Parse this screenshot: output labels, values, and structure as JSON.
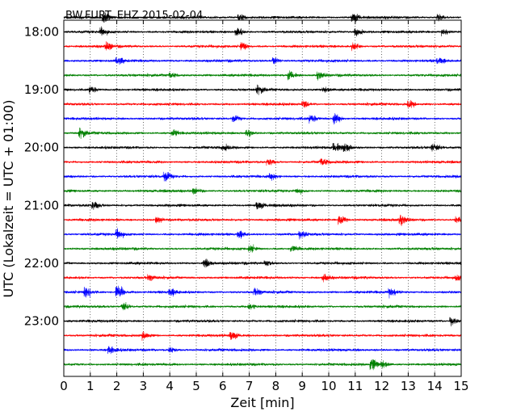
{
  "chart_data": {
    "type": "line",
    "title": "BW.FURT..EHZ 2015-02-04",
    "xlabel": "Zeit  [min]",
    "ylabel": "UTC (Lokalzeit = UTC + 01:00)",
    "xlim": [
      0,
      15
    ],
    "x_ticks": [
      "0",
      "1",
      "2",
      "3",
      "4",
      "5",
      "6",
      "7",
      "8",
      "9",
      "10",
      "11",
      "12",
      "13",
      "14",
      "15"
    ],
    "y_ticks": [
      "18:00",
      "19:00",
      "20:00",
      "21:00",
      "22:00",
      "23:00"
    ],
    "grid": "vertical dotted at each minute",
    "trace_colors": [
      "#000000",
      "#ff0000",
      "#0000ff",
      "#008000"
    ],
    "traces": [
      {
        "start": "17:45",
        "color": "#000000",
        "bursts": [
          [
            1.5,
            2.2
          ],
          [
            6.6,
            2.0
          ],
          [
            10.9,
            2.6
          ],
          [
            14.1,
            1.6
          ]
        ]
      },
      {
        "start": "18:00",
        "color": "#000000",
        "bursts": [
          [
            1.4,
            1.8
          ],
          [
            6.5,
            2.2
          ],
          [
            11.0,
            2.4
          ],
          [
            14.3,
            1.6
          ]
        ]
      },
      {
        "start": "18:15",
        "color": "#ff0000",
        "bursts": [
          [
            1.6,
            2.0
          ],
          [
            6.7,
            2.0
          ],
          [
            10.9,
            1.8
          ]
        ]
      },
      {
        "start": "18:30",
        "color": "#0000ff",
        "bursts": [
          [
            2.0,
            1.8
          ],
          [
            7.9,
            2.0
          ],
          [
            14.1,
            1.6
          ]
        ]
      },
      {
        "start": "18:45",
        "color": "#008000",
        "bursts": [
          [
            4.0,
            1.4
          ],
          [
            8.5,
            2.4
          ],
          [
            9.6,
            1.8
          ]
        ]
      },
      {
        "start": "19:00",
        "color": "#000000",
        "bursts": [
          [
            1.0,
            2.0
          ],
          [
            7.3,
            1.8
          ],
          [
            9.8,
            1.6
          ]
        ]
      },
      {
        "start": "19:15",
        "color": "#ff0000",
        "bursts": [
          [
            9.0,
            1.8
          ],
          [
            13.0,
            2.0
          ]
        ]
      },
      {
        "start": "19:30",
        "color": "#0000ff",
        "bursts": [
          [
            6.4,
            1.6
          ],
          [
            9.3,
            2.2
          ],
          [
            10.2,
            2.6
          ]
        ]
      },
      {
        "start": "19:45",
        "color": "#008000",
        "bursts": [
          [
            0.6,
            2.2
          ],
          [
            4.1,
            1.8
          ],
          [
            6.9,
            1.6
          ]
        ]
      },
      {
        "start": "20:00",
        "color": "#000000",
        "bursts": [
          [
            6.0,
            1.4
          ],
          [
            10.2,
            2.4
          ],
          [
            10.6,
            2.0
          ],
          [
            13.9,
            2.0
          ]
        ]
      },
      {
        "start": "20:15",
        "color": "#ff0000",
        "bursts": [
          [
            7.7,
            1.8
          ],
          [
            9.7,
            2.0
          ]
        ]
      },
      {
        "start": "20:30",
        "color": "#0000ff",
        "bursts": [
          [
            3.8,
            2.4
          ],
          [
            7.8,
            1.4
          ]
        ]
      },
      {
        "start": "20:45",
        "color": "#008000",
        "bursts": [
          [
            4.9,
            1.6
          ],
          [
            8.8,
            1.4
          ]
        ]
      },
      {
        "start": "21:00",
        "color": "#000000",
        "bursts": [
          [
            1.1,
            2.0
          ],
          [
            7.3,
            2.0
          ]
        ]
      },
      {
        "start": "21:15",
        "color": "#ff0000",
        "bursts": [
          [
            3.5,
            1.6
          ],
          [
            10.4,
            2.4
          ],
          [
            12.7,
            2.2
          ],
          [
            14.8,
            1.6
          ]
        ]
      },
      {
        "start": "21:30",
        "color": "#0000ff",
        "bursts": [
          [
            2.0,
            2.2
          ],
          [
            6.6,
            1.8
          ],
          [
            8.9,
            1.8
          ]
        ]
      },
      {
        "start": "21:45",
        "color": "#008000",
        "bursts": [
          [
            7.0,
            1.8
          ],
          [
            8.6,
            1.8
          ]
        ]
      },
      {
        "start": "22:00",
        "color": "#000000",
        "bursts": [
          [
            5.3,
            2.0
          ],
          [
            7.6,
            1.6
          ]
        ]
      },
      {
        "start": "22:15",
        "color": "#ff0000",
        "bursts": [
          [
            3.2,
            1.4
          ],
          [
            9.8,
            1.8
          ],
          [
            14.8,
            1.4
          ]
        ]
      },
      {
        "start": "22:30",
        "color": "#0000ff",
        "bursts": [
          [
            0.8,
            3.2
          ],
          [
            2.0,
            4.0
          ],
          [
            4.0,
            1.6
          ],
          [
            7.2,
            1.8
          ],
          [
            12.3,
            2.2
          ]
        ]
      },
      {
        "start": "22:45",
        "color": "#008000",
        "bursts": [
          [
            2.2,
            2.2
          ],
          [
            7.0,
            1.6
          ]
        ]
      },
      {
        "start": "23:00",
        "color": "#000000",
        "bursts": [
          [
            14.6,
            2.2
          ]
        ]
      },
      {
        "start": "23:15",
        "color": "#ff0000",
        "bursts": [
          [
            3.0,
            1.8
          ],
          [
            6.3,
            2.2
          ]
        ]
      },
      {
        "start": "23:30",
        "color": "#0000ff",
        "bursts": [
          [
            1.7,
            2.0
          ],
          [
            4.0,
            1.4
          ]
        ]
      },
      {
        "start": "23:45",
        "color": "#008000",
        "bursts": [
          [
            11.6,
            2.8
          ],
          [
            12.0,
            2.2
          ]
        ]
      }
    ]
  }
}
